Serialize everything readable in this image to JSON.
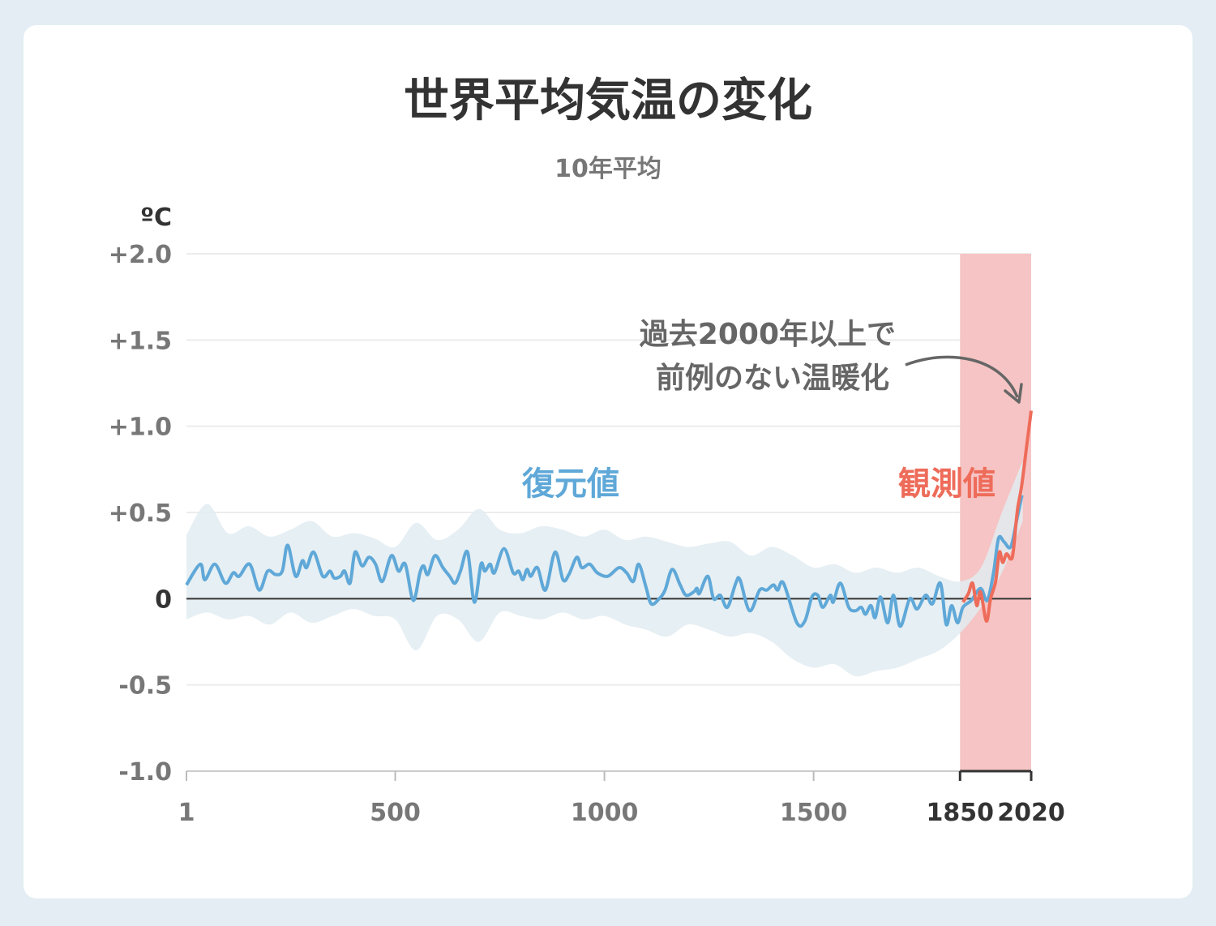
{
  "chart_data": {
    "type": "line",
    "title": "世界平均気温の変化",
    "subtitle": "10年平均",
    "ylabel": "ºC",
    "xlim": [
      1,
      2020
    ],
    "ylim": [
      -1.0,
      2.0
    ],
    "grid": true,
    "y_ticks": [
      {
        "value": 2.0,
        "label": "+2.0"
      },
      {
        "value": 1.5,
        "label": "+1.5"
      },
      {
        "value": 1.0,
        "label": "+1.0"
      },
      {
        "value": 0.5,
        "label": "+0.5"
      },
      {
        "value": 0,
        "label": "0"
      },
      {
        "value": -0.5,
        "label": "-0.5"
      },
      {
        "value": -1.0,
        "label": "-1.0"
      }
    ],
    "x_ticks": [
      {
        "value": 1,
        "label": "1"
      },
      {
        "value": 500,
        "label": "500"
      },
      {
        "value": 1000,
        "label": "1000"
      },
      {
        "value": 1500,
        "label": "1500"
      },
      {
        "value": 1850,
        "label": "1850"
      },
      {
        "value": 2020,
        "label": "2020"
      }
    ],
    "highlight_range": [
      1850,
      2020
    ],
    "annotation": {
      "line1": "過去2000年以上で",
      "line2": "前例のない温暖化"
    },
    "colors": {
      "reconstructed": "#5fa8d8",
      "observed": "#ee6c5a",
      "band": "#e2ecf1",
      "highlight": "#f6c4c4",
      "zero_line": "#333333"
    },
    "series": [
      {
        "name": "復元値",
        "x": [
          1,
          34,
          45,
          69,
          94,
          113,
          127,
          152,
          175,
          195,
          214,
          230,
          243,
          262,
          278,
          288,
          305,
          327,
          344,
          354,
          369,
          379,
          392,
          404,
          421,
          437,
          453,
          469,
          491,
          508,
          524,
          543,
          559,
          568,
          578,
          595,
          614,
          630,
          643,
          656,
          673,
          689,
          705,
          714,
          727,
          737,
          760,
          782,
          795,
          805,
          815,
          824,
          840,
          859,
          882,
          901,
          915,
          934,
          946,
          965,
          983,
          1008,
          1035,
          1053,
          1069,
          1082,
          1099,
          1112,
          1131,
          1145,
          1162,
          1181,
          1195,
          1214,
          1221,
          1227,
          1247,
          1261,
          1277,
          1294,
          1314,
          1324,
          1347,
          1371,
          1388,
          1404,
          1414,
          1428,
          1460,
          1479,
          1496,
          1510,
          1522,
          1540,
          1547,
          1564,
          1584,
          1600,
          1614,
          1624,
          1637,
          1647,
          1660,
          1677,
          1691,
          1707,
          1730,
          1747,
          1768,
          1784,
          1803,
          1817,
          1830,
          1844,
          1857,
          1877,
          1899,
          1915,
          1930,
          1942,
          1955,
          1971,
          1985,
          1998
        ],
        "values": [
          0.08,
          0.2,
          0.11,
          0.2,
          0.09,
          0.15,
          0.13,
          0.2,
          0.05,
          0.16,
          0.14,
          0.16,
          0.31,
          0.13,
          0.22,
          0.18,
          0.27,
          0.13,
          0.16,
          0.12,
          0.13,
          0.16,
          0.09,
          0.27,
          0.19,
          0.24,
          0.2,
          0.1,
          0.25,
          0.16,
          0.2,
          -0.01,
          0.15,
          0.19,
          0.14,
          0.25,
          0.18,
          0.13,
          0.09,
          0.16,
          0.27,
          -0.02,
          0.2,
          0.16,
          0.2,
          0.15,
          0.29,
          0.15,
          0.16,
          0.11,
          0.17,
          0.13,
          0.18,
          0.05,
          0.27,
          0.11,
          0.14,
          0.24,
          0.18,
          0.2,
          0.15,
          0.13,
          0.18,
          0.15,
          0.1,
          0.2,
          0.07,
          -0.03,
          0.0,
          0.05,
          0.17,
          0.08,
          0.02,
          0.04,
          0.06,
          0.03,
          0.13,
          0.0,
          0.02,
          -0.05,
          0.09,
          0.11,
          -0.07,
          0.05,
          0.05,
          0.08,
          0.05,
          0.09,
          -0.14,
          -0.13,
          0.01,
          0.02,
          -0.05,
          0.02,
          -0.02,
          0.09,
          -0.05,
          -0.07,
          -0.05,
          -0.09,
          -0.04,
          -0.11,
          0.01,
          -0.14,
          0.02,
          -0.16,
          0.0,
          -0.06,
          0.02,
          -0.03,
          0.09,
          -0.15,
          -0.04,
          -0.14,
          -0.05,
          -0.01,
          0.06,
          -0.01,
          0.15,
          0.35,
          0.33,
          0.3,
          0.45,
          0.6
        ]
      },
      {
        "name": "観測値",
        "x": [
          1857,
          1870,
          1880,
          1890,
          1899,
          1913,
          1923,
          1935,
          1944,
          1952,
          1961,
          1971,
          1977,
          1987,
          1997,
          2010,
          2020
        ],
        "values": [
          -0.02,
          0.03,
          0.09,
          -0.04,
          0.04,
          -0.13,
          0.0,
          0.1,
          0.27,
          0.21,
          0.26,
          0.23,
          0.27,
          0.51,
          0.65,
          0.9,
          1.09
        ]
      }
    ],
    "uncertainty_band": {
      "x": [
        1,
        50,
        100,
        150,
        200,
        250,
        300,
        350,
        400,
        450,
        500,
        550,
        600,
        650,
        700,
        750,
        800,
        850,
        900,
        950,
        1000,
        1050,
        1100,
        1150,
        1200,
        1250,
        1300,
        1350,
        1400,
        1450,
        1500,
        1550,
        1600,
        1650,
        1700,
        1750,
        1800,
        1850,
        1900,
        1950,
        2000
      ],
      "upper": [
        0.37,
        0.55,
        0.38,
        0.42,
        0.36,
        0.4,
        0.45,
        0.36,
        0.38,
        0.35,
        0.3,
        0.44,
        0.34,
        0.4,
        0.52,
        0.4,
        0.38,
        0.42,
        0.4,
        0.36,
        0.4,
        0.34,
        0.36,
        0.33,
        0.3,
        0.32,
        0.33,
        0.25,
        0.3,
        0.25,
        0.18,
        0.2,
        0.15,
        0.18,
        0.15,
        0.18,
        0.13,
        0.1,
        0.18,
        0.5,
        0.8
      ],
      "lower": [
        -0.12,
        -0.08,
        -0.12,
        -0.1,
        -0.15,
        -0.08,
        -0.14,
        -0.1,
        -0.06,
        -0.1,
        -0.12,
        -0.3,
        -0.1,
        -0.12,
        -0.25,
        -0.08,
        -0.1,
        -0.12,
        -0.08,
        -0.12,
        -0.1,
        -0.15,
        -0.18,
        -0.22,
        -0.15,
        -0.18,
        -0.22,
        -0.2,
        -0.25,
        -0.35,
        -0.4,
        -0.38,
        -0.45,
        -0.42,
        -0.4,
        -0.35,
        -0.3,
        -0.2,
        -0.05,
        0.15,
        0.45
      ]
    }
  }
}
